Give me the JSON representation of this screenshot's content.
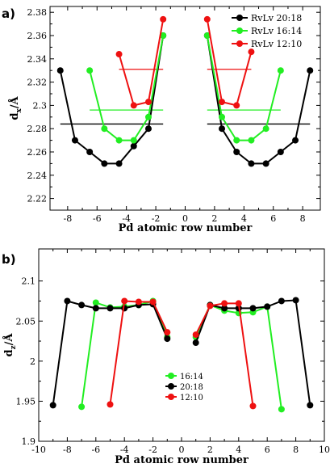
{
  "chart_data": [
    {
      "type": "line",
      "panel_label": "a)",
      "xlabel": "Pd atomic row number",
      "ylabel_main": "d",
      "ylabel_sub": "x",
      "ylabel_tail": "/Å",
      "xlim": [
        -9.2,
        9.2
      ],
      "ylim": [
        2.21,
        2.385
      ],
      "x_ticks": [
        -8,
        -6,
        -4,
        -2,
        0,
        2,
        4,
        6,
        8
      ],
      "x_tick_labels": [
        "-8",
        "-6",
        "-4",
        "-2",
        "0",
        "2",
        "4",
        "6",
        "8"
      ],
      "y_ticks": [
        2.22,
        2.24,
        2.26,
        2.28,
        2.3,
        2.32,
        2.34,
        2.36,
        2.38
      ],
      "y_tick_labels": [
        "2.22",
        "2.24",
        "2.26",
        "2.28",
        "2.3",
        "2.32",
        "2.34",
        "2.36",
        "2.38"
      ],
      "legend_position": "top-right",
      "series": [
        {
          "name": "RvLv 20:18",
          "color": "#000000",
          "segments": [
            {
              "x": [
                -8.5,
                -7.5,
                -6.5,
                -5.5,
                -4.5,
                -3.5,
                -2.5,
                -1.5
              ],
              "y": [
                2.33,
                2.27,
                2.26,
                2.25,
                2.25,
                2.265,
                2.28,
                2.36
              ]
            },
            {
              "x": [
                1.5,
                2.5,
                3.5,
                4.5,
                5.5,
                6.5,
                7.5,
                8.5
              ],
              "y": [
                2.36,
                2.28,
                2.26,
                2.25,
                2.25,
                2.26,
                2.27,
                2.33
              ]
            }
          ]
        },
        {
          "name": "RvLv 16:14",
          "color": "#22ee22",
          "segments": [
            {
              "x": [
                -6.5,
                -5.5,
                -4.5,
                -3.5,
                -2.5,
                -1.5
              ],
              "y": [
                2.33,
                2.28,
                2.27,
                2.27,
                2.29,
                2.36
              ]
            },
            {
              "x": [
                1.5,
                2.5,
                3.5,
                4.5,
                5.5,
                6.5
              ],
              "y": [
                2.36,
                2.29,
                2.27,
                2.27,
                2.28,
                2.33
              ]
            }
          ]
        },
        {
          "name": "RvLv 12:10",
          "color": "#ee1111",
          "segments": [
            {
              "x": [
                -4.5,
                -3.5,
                -2.5,
                -1.5
              ],
              "y": [
                2.344,
                2.3,
                2.303,
                2.374
              ]
            },
            {
              "x": [
                1.5,
                2.5,
                3.5,
                4.5
              ],
              "y": [
                2.374,
                2.303,
                2.3,
                2.346
              ]
            }
          ]
        }
      ],
      "mean_lines": [
        {
          "color": "#000000",
          "y": 2.284,
          "x_ranges": [
            [
              -8.5,
              -1.5
            ],
            [
              1.5,
              8.5
            ]
          ]
        },
        {
          "color": "#22ee22",
          "y": 2.296,
          "x_ranges": [
            [
              -6.5,
              -1.5
            ],
            [
              1.5,
              6.5
            ]
          ]
        },
        {
          "color": "#ee1111",
          "y": 2.331,
          "x_ranges": [
            [
              -4.5,
              -1.5
            ],
            [
              1.5,
              4.5
            ]
          ]
        }
      ]
    },
    {
      "type": "line",
      "panel_label": "b)",
      "xlabel": "Pd atomic row number",
      "ylabel_main": "d",
      "ylabel_sub": "z",
      "ylabel_tail": "/Å",
      "xlim": [
        -10,
        10
      ],
      "ylim": [
        1.9,
        2.14
      ],
      "x_ticks": [
        -10,
        -8,
        -6,
        -4,
        -2,
        0,
        2,
        4,
        6,
        8,
        10
      ],
      "x_tick_labels": [
        "-10",
        "-8",
        "-6",
        "-4",
        "-2",
        "0",
        "2",
        "4",
        "6",
        "8",
        "10"
      ],
      "y_ticks": [
        1.9,
        1.95,
        2.0,
        2.05,
        2.1
      ],
      "y_tick_labels": [
        "1.9",
        "1.95",
        "2",
        "2.05",
        "2.1"
      ],
      "legend_position": "lower-center",
      "series": [
        {
          "name": "16:14",
          "color": "#22ee22",
          "segments": [
            {
              "x": [
                -7,
                -6,
                -5,
                -4,
                -3,
                -2,
                -1
              ],
              "y": [
                1.943,
                2.073,
                2.067,
                2.068,
                2.07,
                2.075,
                2.03
              ]
            },
            {
              "x": [
                1,
                2,
                3,
                4,
                5,
                6,
                7
              ],
              "y": [
                2.03,
                2.07,
                2.063,
                2.06,
                2.061,
                2.068,
                1.94
              ]
            }
          ]
        },
        {
          "name": "20:18",
          "color": "#000000",
          "segments": [
            {
              "x": [
                -9,
                -8,
                -7,
                -6,
                -5,
                -4,
                -3,
                -2,
                -1
              ],
              "y": [
                1.945,
                2.075,
                2.07,
                2.066,
                2.066,
                2.066,
                2.07,
                2.071,
                2.028
              ]
            },
            {
              "x": [
                1,
                2,
                3,
                4,
                5,
                6,
                7,
                8,
                9
              ],
              "y": [
                2.023,
                2.07,
                2.066,
                2.066,
                2.066,
                2.068,
                2.075,
                2.076,
                1.945
              ]
            }
          ]
        },
        {
          "name": "12:10",
          "color": "#ee1111",
          "segments": [
            {
              "x": [
                -5,
                -4,
                -3,
                -2,
                -1
              ],
              "y": [
                1.946,
                2.075,
                2.074,
                2.074,
                2.036
              ]
            },
            {
              "x": [
                1,
                2,
                3,
                4,
                5
              ],
              "y": [
                2.033,
                2.069,
                2.072,
                2.072,
                1.944
              ]
            }
          ]
        }
      ]
    }
  ]
}
